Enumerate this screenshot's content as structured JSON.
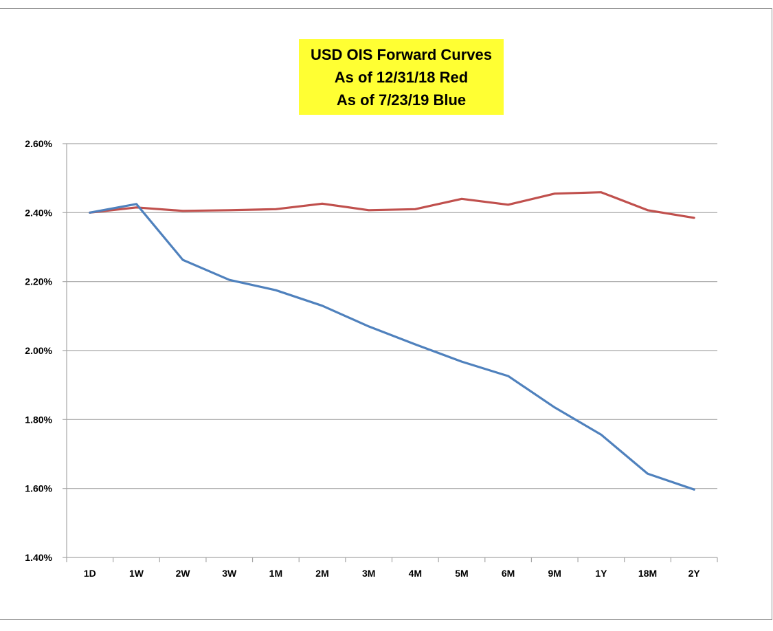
{
  "chart_data": {
    "type": "line",
    "title_lines": [
      "USD OIS Forward Curves",
      "As of 12/31/18 Red",
      "As of 7/23/19 Blue"
    ],
    "categories": [
      "1D",
      "1W",
      "2W",
      "3W",
      "1M",
      "2M",
      "3M",
      "4M",
      "5M",
      "6M",
      "9M",
      "1Y",
      "18M",
      "2Y"
    ],
    "y_ticks": [
      "1.40%",
      "1.60%",
      "1.80%",
      "2.00%",
      "2.20%",
      "2.40%",
      "2.60%"
    ],
    "ylim": [
      1.4,
      2.6
    ],
    "y_unit": "%",
    "grid": true,
    "series": [
      {
        "color": "#c0504d",
        "values": [
          2.4,
          2.415,
          2.405,
          2.407,
          2.41,
          2.426,
          2.407,
          2.41,
          2.44,
          2.423,
          2.455,
          2.459,
          2.407,
          2.385
        ]
      },
      {
        "color": "#4f81bd",
        "values": [
          2.4,
          2.425,
          2.263,
          2.205,
          2.175,
          2.13,
          2.07,
          2.018,
          1.968,
          1.926,
          1.835,
          1.756,
          1.643,
          1.597
        ]
      }
    ]
  }
}
